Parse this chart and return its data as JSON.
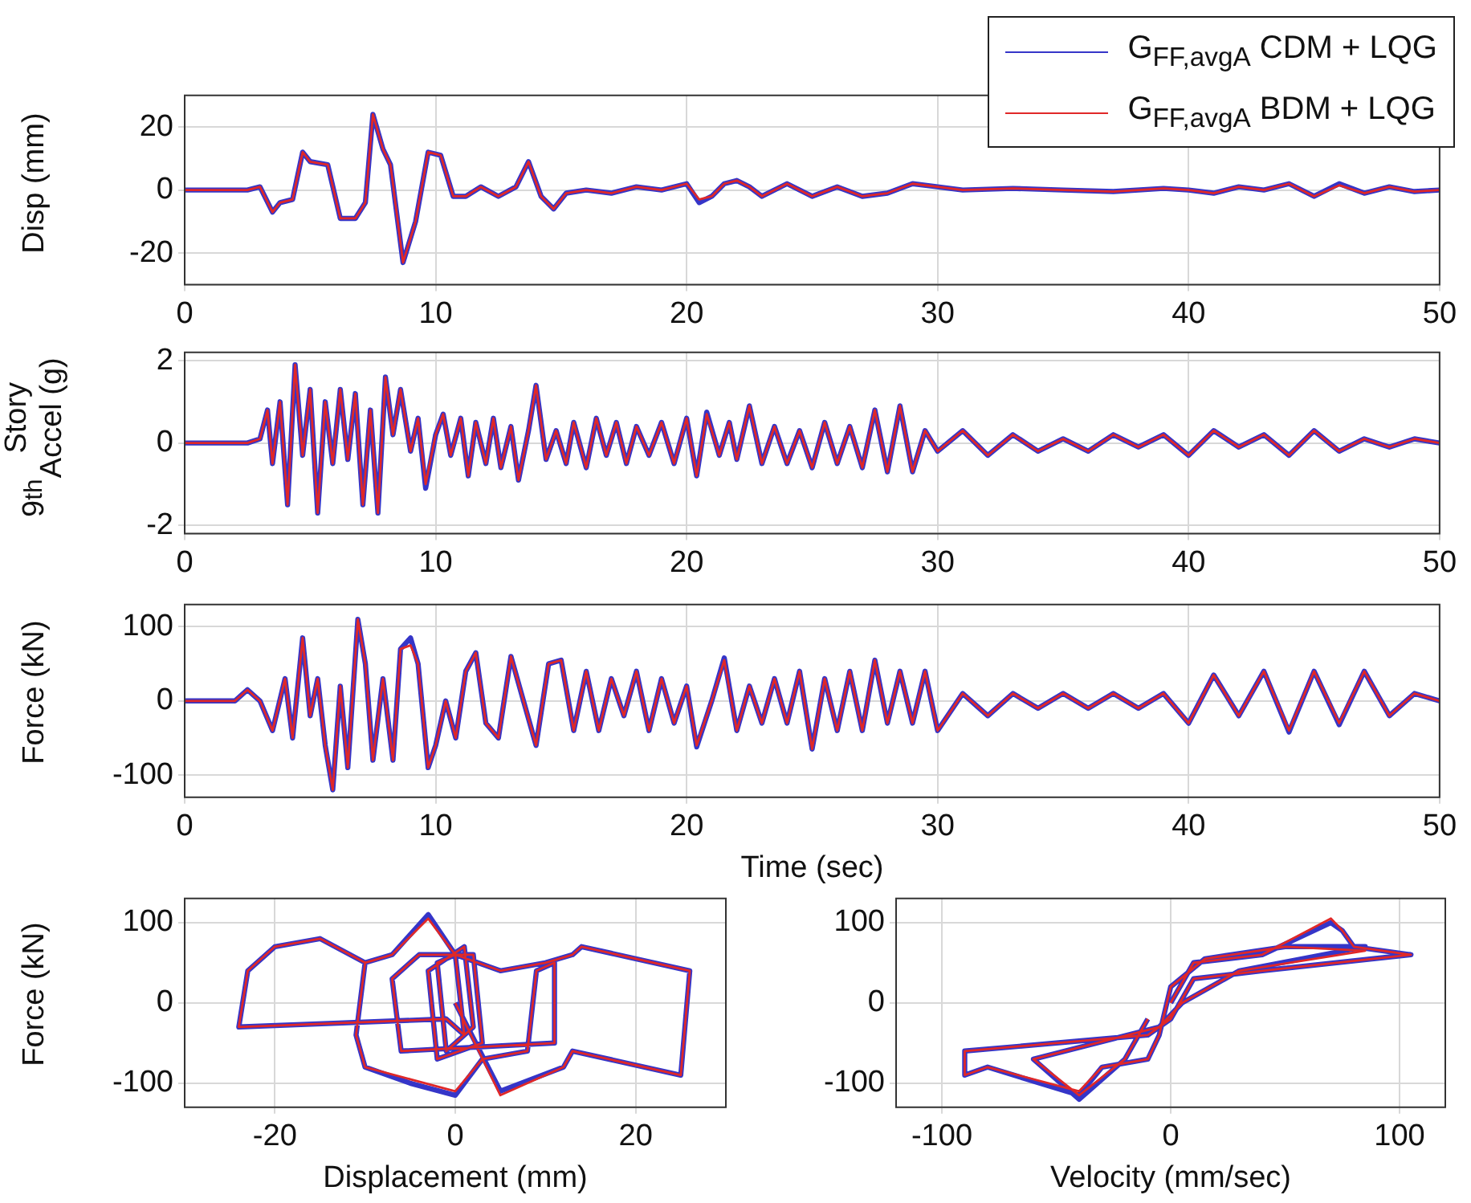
{
  "chart_data": [
    {
      "type": "line",
      "ylabel": "Disp (mm)",
      "legend": "top right",
      "grid": true,
      "xlim": [
        0,
        50
      ],
      "xticks": [
        0,
        10,
        20,
        30,
        40,
        50
      ],
      "ylim": [
        -30,
        30
      ],
      "yticks": [
        -20,
        0,
        20
      ],
      "x": [
        0,
        2.5,
        3,
        3.5,
        3.8,
        4.3,
        4.7,
        5,
        5.7,
        6.2,
        6.8,
        7.2,
        7.5,
        7.9,
        8.2,
        8.7,
        9.2,
        9.7,
        10.2,
        10.7,
        11.2,
        11.8,
        12.5,
        13.2,
        13.7,
        14.2,
        14.7,
        15.2,
        16,
        17,
        18,
        19,
        20,
        20.5,
        21,
        21.5,
        22,
        22.5,
        23,
        24,
        25,
        26,
        27,
        28,
        29,
        30,
        31,
        33,
        35,
        37,
        39,
        40,
        41,
        42,
        43,
        44,
        45,
        46,
        47,
        48,
        49,
        50
      ],
      "series": [
        {
          "name": "G$_{FF,avgA}$ CDM + LQG",
          "color": "#3535c8",
          "values": [
            0,
            0,
            1,
            -7,
            -4,
            -3,
            12,
            9,
            8,
            -9,
            -9,
            -4,
            24,
            13,
            8,
            -23,
            -10,
            12,
            11,
            -2,
            -2,
            1,
            -2,
            1,
            9,
            -2,
            -6,
            -1,
            0,
            -1,
            1,
            0,
            2,
            -4,
            -2,
            2,
            3,
            1,
            -2,
            2,
            -2,
            1,
            -2,
            -1,
            2,
            1,
            0,
            0.5,
            0,
            -0.5,
            0.5,
            0,
            -1,
            1,
            0,
            2,
            -2,
            2,
            -1,
            1,
            -0.5,
            0
          ]
        },
        {
          "name": "G$_{FF,avgA}$ BDM + LQG",
          "color": "#e02828",
          "values": [
            0,
            0,
            1,
            -7,
            -4,
            -3,
            12,
            9,
            8,
            -9,
            -9,
            -4,
            24,
            13,
            8,
            -23,
            -10,
            12,
            11,
            -2,
            -2,
            1,
            -2,
            1,
            9,
            -2,
            -6,
            -1,
            0,
            -1,
            1,
            0,
            2,
            -3,
            -2,
            2,
            3,
            1,
            -2,
            2,
            -2,
            1,
            -2,
            -1,
            2,
            1,
            0,
            0.5,
            0,
            -0.5,
            0.5,
            0,
            -1,
            1,
            0,
            2,
            -2,
            1.5,
            -1,
            1,
            -0.5,
            0
          ]
        }
      ]
    },
    {
      "type": "line",
      "ylabel": "9$^{th}$ Story Accel (g)",
      "grid": true,
      "xlim": [
        0,
        50
      ],
      "xticks": [
        0,
        10,
        20,
        30,
        40,
        50
      ],
      "ylim": [
        -2.2,
        2.2
      ],
      "yticks": [
        -2,
        0,
        2
      ],
      "x": [
        0,
        2.5,
        3,
        3.3,
        3.5,
        3.8,
        4.1,
        4.4,
        4.7,
        5,
        5.3,
        5.6,
        5.9,
        6.2,
        6.5,
        6.8,
        7.1,
        7.4,
        7.7,
        8,
        8.3,
        8.6,
        9,
        9.3,
        9.6,
        10,
        10.3,
        10.6,
        11,
        11.3,
        11.6,
        12,
        12.3,
        12.6,
        13,
        13.3,
        13.7,
        14,
        14.4,
        14.8,
        15.2,
        15.5,
        16,
        16.4,
        16.8,
        17.2,
        17.6,
        18,
        18.5,
        19,
        19.5,
        20,
        20.4,
        20.8,
        21.3,
        21.7,
        22,
        22.5,
        23,
        23.5,
        24,
        24.5,
        25,
        25.5,
        26,
        26.5,
        27,
        27.5,
        28,
        28.5,
        29,
        29.5,
        30,
        31,
        32,
        33,
        34,
        35,
        36,
        37,
        38,
        39,
        40,
        41,
        42,
        43,
        44,
        45,
        46,
        47,
        48,
        49,
        50
      ],
      "series": [
        {
          "color": "#3535c8",
          "values": [
            0,
            0,
            0.1,
            0.8,
            -0.5,
            1,
            -1.5,
            1.9,
            -0.3,
            1.3,
            -1.7,
            1,
            -0.5,
            1.3,
            -0.4,
            1.2,
            -1.5,
            0.8,
            -1.7,
            1.6,
            0.2,
            1.3,
            -0.2,
            0.6,
            -1.1,
            0.2,
            0.7,
            -0.3,
            0.6,
            -0.8,
            0.5,
            -0.5,
            0.6,
            -0.6,
            0.4,
            -0.9,
            0.3,
            1.4,
            -0.4,
            0.3,
            -0.5,
            0.5,
            -0.6,
            0.6,
            -0.3,
            0.5,
            -0.5,
            0.4,
            -0.3,
            0.5,
            -0.5,
            0.6,
            -0.8,
            0.75,
            -0.3,
            0.5,
            -0.4,
            0.9,
            -0.5,
            0.4,
            -0.5,
            0.3,
            -0.6,
            0.5,
            -0.5,
            0.4,
            -0.6,
            0.8,
            -0.7,
            0.9,
            -0.7,
            0.3,
            -0.2,
            0.3,
            -0.3,
            0.2,
            -0.2,
            0.1,
            -0.2,
            0.2,
            -0.1,
            0.2,
            -0.3,
            0.3,
            -0.1,
            0.2,
            -0.3,
            0.3,
            -0.2,
            0.1,
            -0.1,
            0.1,
            0
          ]
        },
        {
          "color": "#e02828",
          "values": [
            0,
            0,
            0.1,
            0.8,
            -0.5,
            1,
            -1.5,
            1.9,
            -0.3,
            1.3,
            -1.7,
            1,
            -0.5,
            1.3,
            -0.4,
            1.2,
            -1.5,
            0.8,
            -1.7,
            1.6,
            0.2,
            1.3,
            -0.2,
            0.6,
            -1,
            0.2,
            0.7,
            -0.3,
            0.6,
            -0.8,
            0.5,
            -0.5,
            0.6,
            -0.6,
            0.4,
            -0.9,
            0.3,
            1.4,
            -0.4,
            0.3,
            -0.5,
            0.5,
            -0.6,
            0.6,
            -0.3,
            0.5,
            -0.5,
            0.4,
            -0.3,
            0.5,
            -0.5,
            0.6,
            -0.8,
            0.7,
            -0.3,
            0.5,
            -0.4,
            0.9,
            -0.5,
            0.4,
            -0.5,
            0.3,
            -0.6,
            0.5,
            -0.5,
            0.4,
            -0.6,
            0.8,
            -0.7,
            0.9,
            -0.7,
            0.3,
            -0.2,
            0.3,
            -0.3,
            0.2,
            -0.2,
            0.1,
            -0.2,
            0.2,
            -0.1,
            0.2,
            -0.3,
            0.3,
            -0.1,
            0.2,
            -0.3,
            0.3,
            -0.2,
            0.1,
            -0.1,
            0.1,
            0
          ]
        }
      ]
    },
    {
      "type": "line",
      "xlabel": "Time (sec)",
      "ylabel": "Force (kN)",
      "grid": true,
      "xlim": [
        0,
        50
      ],
      "xticks": [
        0,
        10,
        20,
        30,
        40,
        50
      ],
      "ylim": [
        -130,
        130
      ],
      "yticks": [
        -100,
        0,
        100
      ],
      "x": [
        0,
        2,
        2.5,
        3,
        3.5,
        4,
        4.3,
        4.7,
        5,
        5.3,
        5.6,
        5.9,
        6.2,
        6.5,
        6.9,
        7.2,
        7.5,
        7.9,
        8.3,
        8.6,
        9,
        9.3,
        9.7,
        10,
        10.4,
        10.8,
        11.2,
        11.6,
        12,
        12.5,
        13,
        13.5,
        14,
        14.5,
        15,
        15.5,
        16,
        16.5,
        17,
        17.5,
        18,
        18.5,
        19,
        19.5,
        20,
        20.4,
        21,
        21.5,
        22,
        22.5,
        23,
        23.5,
        24,
        24.5,
        25,
        25.5,
        26,
        26.5,
        27,
        27.5,
        28,
        28.5,
        29,
        29.5,
        30,
        31,
        32,
        33,
        34,
        35,
        36,
        37,
        38,
        39,
        40,
        41,
        42,
        43,
        44,
        45,
        46,
        47,
        48,
        49,
        50
      ],
      "series": [
        {
          "color": "#3535c8",
          "values": [
            0,
            0,
            15,
            0,
            -40,
            30,
            -50,
            85,
            -20,
            30,
            -60,
            -120,
            20,
            -90,
            110,
            50,
            -80,
            30,
            -80,
            70,
            85,
            50,
            -90,
            -60,
            0,
            -50,
            40,
            65,
            -30,
            -50,
            60,
            0,
            -60,
            50,
            55,
            -40,
            40,
            -40,
            30,
            -20,
            40,
            -40,
            30,
            -30,
            20,
            -62,
            0,
            58,
            -40,
            20,
            -30,
            30,
            -30,
            40,
            -65,
            30,
            -40,
            40,
            -40,
            55,
            -30,
            40,
            -30,
            40,
            -40,
            10,
            -20,
            10,
            -10,
            10,
            -10,
            10,
            -10,
            10,
            -30,
            35,
            -20,
            40,
            -42,
            40,
            -32,
            40,
            -20,
            10,
            0
          ]
        },
        {
          "color": "#e02828",
          "values": [
            0,
            0,
            15,
            0,
            -40,
            30,
            -50,
            85,
            -20,
            30,
            -60,
            -120,
            20,
            -90,
            110,
            50,
            -80,
            30,
            -80,
            70,
            75,
            50,
            -90,
            -60,
            0,
            -50,
            40,
            65,
            -30,
            -50,
            60,
            0,
            -60,
            50,
            55,
            -40,
            40,
            -40,
            30,
            -20,
            40,
            -40,
            30,
            -30,
            20,
            -60,
            0,
            55,
            -40,
            20,
            -30,
            30,
            -30,
            40,
            -65,
            30,
            -40,
            40,
            -40,
            55,
            -30,
            40,
            -30,
            40,
            -40,
            10,
            -20,
            10,
            -10,
            10,
            -10,
            10,
            -10,
            10,
            -30,
            35,
            -20,
            40,
            -40,
            40,
            -30,
            40,
            -20,
            10,
            0
          ]
        }
      ]
    },
    {
      "type": "line",
      "xlabel": "Displacement (mm)",
      "ylabel": "Force (kN)",
      "grid": true,
      "xlim": [
        -30,
        30
      ],
      "xticks": [
        -20,
        0,
        20
      ],
      "ylim": [
        -130,
        130
      ],
      "yticks": [
        -100,
        0,
        100
      ],
      "series": [
        {
          "color": "#3535c8",
          "x": [
            0,
            5,
            12,
            13,
            25,
            26,
            14,
            13,
            10,
            5,
            0,
            -3,
            -7,
            -10,
            -11,
            -10,
            -5,
            0,
            3,
            8,
            9,
            11,
            11,
            -6,
            -7,
            -4,
            2,
            3,
            -2,
            -3,
            1,
            2,
            -1,
            -2,
            0,
            1,
            -1,
            -24,
            -23,
            -20,
            -15,
            -10,
            -11
          ],
          "values": [
            0,
            -110,
            -80,
            -60,
            -90,
            40,
            70,
            60,
            50,
            40,
            60,
            110,
            60,
            50,
            -40,
            -80,
            -100,
            -115,
            -70,
            -60,
            40,
            50,
            -50,
            -60,
            30,
            60,
            60,
            -50,
            -70,
            40,
            70,
            -30,
            -60,
            50,
            60,
            -40,
            -20,
            -30,
            40,
            70,
            80,
            50,
            -40
          ]
        },
        {
          "color": "#e02828",
          "x": [
            0,
            5,
            12,
            13,
            25,
            26,
            14,
            13,
            10,
            5,
            0,
            -3,
            -7,
            -10,
            -11,
            -10,
            -5,
            0,
            3,
            8,
            9,
            11,
            11,
            -6,
            -7,
            -4,
            2,
            3,
            -2,
            -3,
            1,
            2,
            -1,
            -2,
            0,
            1,
            -1,
            -24,
            -23,
            -20,
            -15,
            -10,
            -11
          ],
          "values": [
            0,
            -115,
            -80,
            -60,
            -90,
            40,
            70,
            60,
            50,
            40,
            60,
            105,
            60,
            50,
            -40,
            -80,
            -95,
            -110,
            -70,
            -60,
            40,
            50,
            -50,
            -60,
            30,
            60,
            60,
            -50,
            -70,
            40,
            70,
            -30,
            -60,
            50,
            60,
            -40,
            -20,
            -30,
            40,
            70,
            80,
            50,
            -40
          ]
        }
      ]
    },
    {
      "type": "line",
      "xlabel": "Velocity (mm/sec)",
      "grid": true,
      "xlim": [
        -120,
        120
      ],
      "xticks": [
        -100,
        0,
        100
      ],
      "ylim": [
        -130,
        130
      ],
      "yticks": [
        -100,
        0,
        100
      ],
      "series": [
        {
          "color": "#3535c8",
          "x": [
            0,
            10,
            40,
            70,
            75,
            80,
            105,
            40,
            10,
            0,
            -10,
            -50,
            -90,
            -90,
            -80,
            -40,
            -30,
            -10,
            -5,
            0,
            15,
            50,
            85,
            30,
            5,
            -5,
            -60,
            -40,
            -20,
            -10
          ],
          "values": [
            0,
            50,
            60,
            100,
            90,
            70,
            60,
            40,
            30,
            -20,
            -40,
            -50,
            -60,
            -90,
            -80,
            -115,
            -80,
            -70,
            -40,
            20,
            55,
            70,
            70,
            40,
            0,
            -30,
            -70,
            -120,
            -70,
            -20
          ]
        },
        {
          "color": "#e02828",
          "x": [
            0,
            10,
            40,
            70,
            75,
            80,
            105,
            40,
            10,
            0,
            -10,
            -50,
            -90,
            -90,
            -80,
            -40,
            -30,
            -10,
            -5,
            0,
            15,
            50,
            85,
            30,
            5,
            -5,
            -60,
            -40,
            -20,
            -10
          ],
          "values": [
            0,
            50,
            60,
            105,
            90,
            70,
            60,
            40,
            30,
            -20,
            -40,
            -50,
            -60,
            -90,
            -80,
            -110,
            -80,
            -70,
            -40,
            20,
            55,
            70,
            65,
            40,
            0,
            -30,
            -70,
            -115,
            -70,
            -20
          ]
        }
      ]
    }
  ]
}
